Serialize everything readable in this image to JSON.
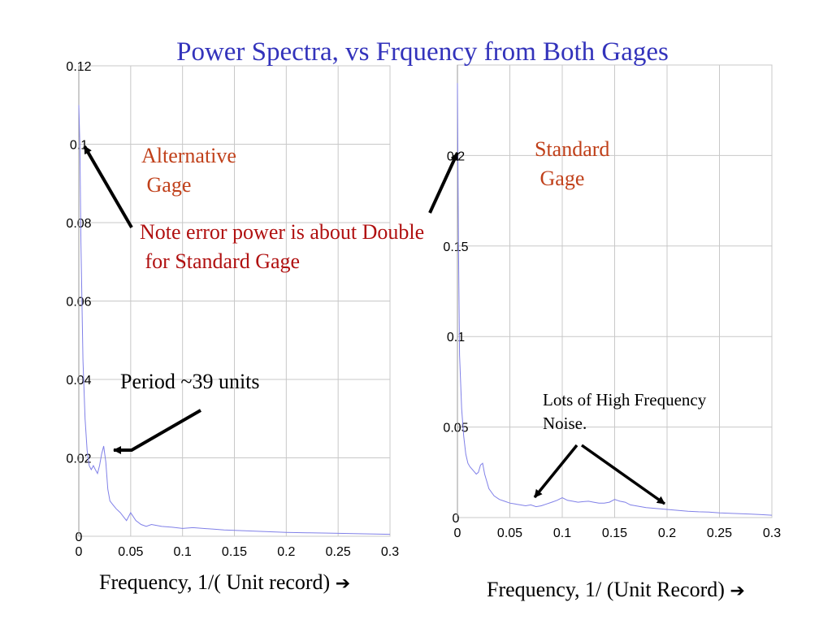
{
  "title": "Power Spectra, vs Frquency from Both Gages",
  "colors": {
    "title": "#3333bb",
    "label": "#c0401a",
    "note": "#b01010",
    "trace": "#8080e8",
    "grid": "#c8c8c8",
    "text": "#000000"
  },
  "annotations": {
    "alternative_gage": "Alternative\n Gage",
    "standard_gage": "Standard\n Gage",
    "note": "Note error power is about Double\n for Standard Gage",
    "period": "Period ~39 units",
    "noise": "Lots of High Frequency\nNoise."
  },
  "arrow_glyph": "➔",
  "chart_data": [
    {
      "type": "line",
      "title": "",
      "xlabel": "Frequency, 1/( Unit record)",
      "ylabel": "",
      "xlim": [
        0,
        0.3
      ],
      "ylim": [
        0,
        0.12
      ],
      "grid": true,
      "x_ticks": [
        0,
        0.05,
        0.1,
        0.15,
        0.2,
        0.25,
        0.3
      ],
      "x_tick_labels": [
        "0",
        "0.05",
        "0.1",
        "0.15",
        "0.2",
        "0.25",
        "0.3"
      ],
      "y_ticks": [
        0,
        0.02,
        0.04,
        0.06,
        0.08,
        0.1,
        0.12
      ],
      "y_tick_labels": [
        "0",
        "0.02",
        "0.04",
        "0.06",
        "0.08",
        "0.1",
        "0.12"
      ],
      "series": [
        {
          "x": [
            0,
            0.001,
            0.002,
            0.004,
            0.006,
            0.008,
            0.01,
            0.012,
            0.014,
            0.016,
            0.018,
            0.02,
            0.022,
            0.024,
            0.026,
            0.028,
            0.03,
            0.033,
            0.036,
            0.04,
            0.043,
            0.046,
            0.05,
            0.055,
            0.06,
            0.065,
            0.07,
            0.08,
            0.09,
            0.1,
            0.11,
            0.12,
            0.13,
            0.14,
            0.15,
            0.16,
            0.17,
            0.18,
            0.2,
            0.22,
            0.24,
            0.26,
            0.28,
            0.3
          ],
          "y": [
            0.11,
            0.1,
            0.075,
            0.045,
            0.03,
            0.022,
            0.018,
            0.017,
            0.018,
            0.017,
            0.016,
            0.018,
            0.021,
            0.023,
            0.019,
            0.012,
            0.009,
            0.008,
            0.007,
            0.006,
            0.005,
            0.004,
            0.006,
            0.004,
            0.003,
            0.0025,
            0.003,
            0.0025,
            0.0023,
            0.002,
            0.0022,
            0.002,
            0.0018,
            0.0016,
            0.0015,
            0.0014,
            0.0013,
            0.0012,
            0.001,
            0.0009,
            0.0008,
            0.0007,
            0.0006,
            0.0005
          ]
        }
      ]
    },
    {
      "type": "line",
      "title": "",
      "xlabel": "Frequency, 1/ (Unit Record)",
      "ylabel": "",
      "xlim": [
        0,
        0.3
      ],
      "ylim": [
        0,
        0.25
      ],
      "grid": true,
      "x_ticks": [
        0,
        0.05,
        0.1,
        0.15,
        0.2,
        0.25,
        0.3
      ],
      "x_tick_labels": [
        "0",
        "0.05",
        "0.1",
        "0.15",
        "0.2",
        "0.25",
        "0.3"
      ],
      "y_ticks": [
        0,
        0.05,
        0.1,
        0.15,
        0.2
      ],
      "y_tick_labels": [
        "0",
        "0.05",
        "0.1",
        "0.15",
        "0.2"
      ],
      "series": [
        {
          "x": [
            0,
            0.001,
            0.002,
            0.004,
            0.006,
            0.008,
            0.01,
            0.012,
            0.015,
            0.018,
            0.02,
            0.022,
            0.024,
            0.026,
            0.028,
            0.03,
            0.035,
            0.04,
            0.045,
            0.05,
            0.055,
            0.06,
            0.065,
            0.07,
            0.075,
            0.08,
            0.085,
            0.09,
            0.095,
            0.1,
            0.105,
            0.11,
            0.115,
            0.12,
            0.125,
            0.13,
            0.135,
            0.14,
            0.145,
            0.15,
            0.155,
            0.16,
            0.165,
            0.17,
            0.18,
            0.19,
            0.2,
            0.21,
            0.22,
            0.23,
            0.24,
            0.25,
            0.26,
            0.27,
            0.28,
            0.29,
            0.3
          ],
          "y": [
            0.24,
            0.15,
            0.09,
            0.06,
            0.045,
            0.035,
            0.03,
            0.028,
            0.026,
            0.024,
            0.025,
            0.029,
            0.03,
            0.024,
            0.02,
            0.016,
            0.012,
            0.01,
            0.009,
            0.008,
            0.0075,
            0.007,
            0.0065,
            0.007,
            0.006,
            0.0065,
            0.0075,
            0.0085,
            0.0095,
            0.011,
            0.0095,
            0.009,
            0.0085,
            0.0088,
            0.009,
            0.0085,
            0.008,
            0.008,
            0.0085,
            0.01,
            0.009,
            0.0085,
            0.007,
            0.0065,
            0.0055,
            0.005,
            0.0045,
            0.004,
            0.0035,
            0.0032,
            0.003,
            0.0026,
            0.0024,
            0.0021,
            0.0019,
            0.0016,
            0.0013
          ]
        }
      ]
    }
  ]
}
